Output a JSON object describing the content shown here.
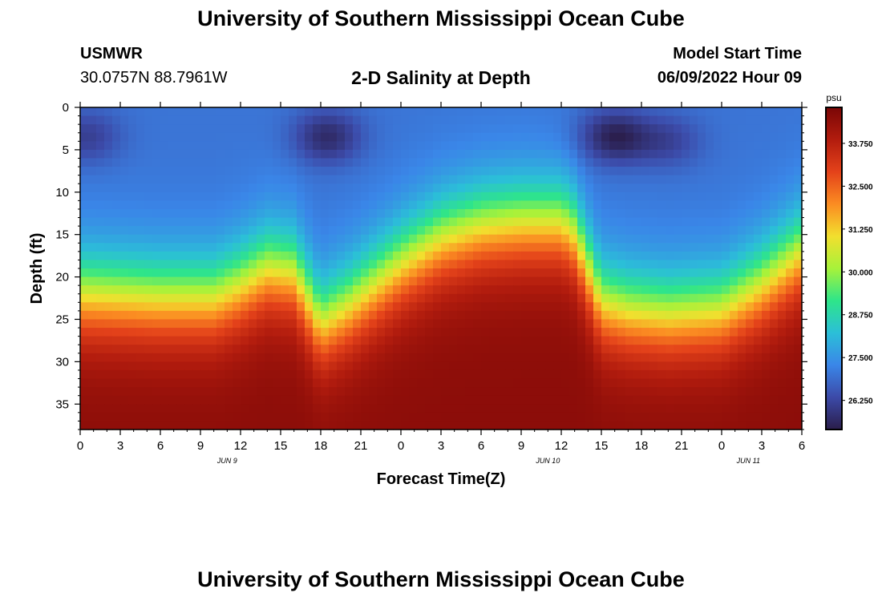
{
  "header": {
    "title": "University of Southern Mississippi Ocean Cube",
    "station": "USMWR",
    "coords": "30.0757N  88.7961W",
    "subtitle": "2-D Salinity at Depth",
    "model_start_label": "Model Start Time",
    "model_start_value": "06/09/2022 Hour 09"
  },
  "footer": {
    "title": "University of Southern Mississippi Ocean Cube"
  },
  "chart_data": {
    "type": "heatmap",
    "xlabel": "Forecast Time(Z)",
    "ylabel": "Depth (ft)",
    "x_tick_labels": [
      "0",
      "3",
      "6",
      "9",
      "12",
      "15",
      "18",
      "21",
      "0",
      "3",
      "6",
      "9",
      "12",
      "15",
      "18",
      "21",
      "0",
      "3",
      "6"
    ],
    "date_labels": [
      "JUN 9",
      "JUN 10",
      "JUN 11"
    ],
    "date_label_hours": [
      11,
      35,
      50
    ],
    "xlim_hours": [
      0,
      54
    ],
    "ylim_ft": [
      0,
      38
    ],
    "y_ticks": [
      0,
      5,
      10,
      15,
      20,
      25,
      30,
      35
    ],
    "colorbar": {
      "unit": "psu",
      "min": 25.4,
      "max": 34.8,
      "tick_values": [
        26.25,
        27.5,
        28.75,
        30.0,
        31.25,
        32.5,
        33.75
      ],
      "tick_labels": [
        "26.250",
        "27.500",
        "28.750",
        "30.000",
        "31.250",
        "32.500",
        "33.750"
      ],
      "colors": [
        "#2a1d4a",
        "#3c4aa8",
        "#3a86e8",
        "#2bbfd8",
        "#2ee58a",
        "#a7f23a",
        "#f2df2e",
        "#fb8c22",
        "#e4421a",
        "#b21c0e",
        "#7a0606"
      ]
    },
    "surface_salinity_psu": 27.0,
    "bottom_salinity_psu": 34.5,
    "halocline_depth_ft": [
      [
        0,
        22
      ],
      [
        6,
        22.5
      ],
      [
        10,
        22.5
      ],
      [
        12,
        21
      ],
      [
        14,
        19
      ],
      [
        16,
        19.5
      ],
      [
        18,
        25.5
      ],
      [
        20,
        23.5
      ],
      [
        22,
        21
      ],
      [
        24,
        18.5
      ],
      [
        27,
        15.5
      ],
      [
        30,
        14
      ],
      [
        33,
        13.5
      ],
      [
        36,
        13.5
      ],
      [
        37,
        15
      ],
      [
        38,
        19
      ],
      [
        39,
        23
      ],
      [
        41,
        24
      ],
      [
        44,
        24.5
      ],
      [
        48,
        24
      ],
      [
        51,
        21
      ],
      [
        54,
        17
      ]
    ],
    "low_salinity_patches": [
      {
        "hour": 0.5,
        "depth_ft": 3.5,
        "min_psu": 26.1
      },
      {
        "hour": 18.5,
        "depth_ft": 3.5,
        "min_psu": 25.7
      },
      {
        "hour": 40,
        "depth_ft": 3.5,
        "min_psu": 25.5
      },
      {
        "hour": 44,
        "depth_ft": 4,
        "min_psu": 26.2
      }
    ]
  }
}
